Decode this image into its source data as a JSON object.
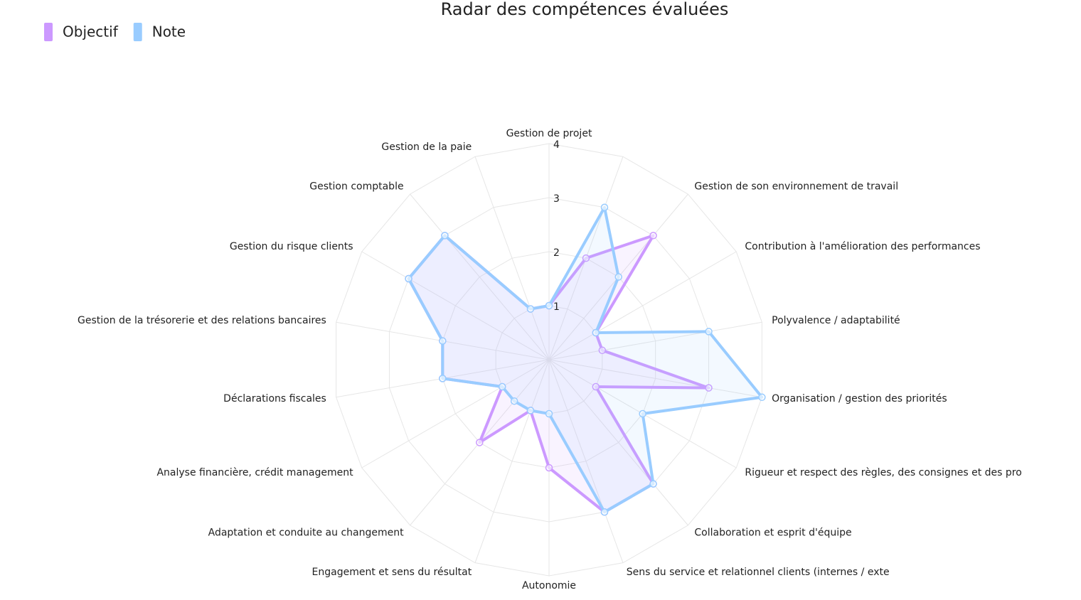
{
  "chart_data": {
    "type": "radar",
    "title": "Radar des compétences évaluées",
    "categories": [
      "Gestion de projet",
      null,
      "Gestion de son environnement de travail",
      "Contribution à l'amélioration des performances",
      "Polyvalence / adaptabilité",
      "Organisation / gestion des priorités",
      "Rigueur et respect des règles, des consignes et des pro",
      "Collaboration et esprit d'équipe",
      "Sens du service et relationnel clients (internes / exte",
      "Autonomie",
      "Engagement et sens du résultat",
      "Adaptation et conduite au changement",
      "Analyse financière, crédit management",
      "Déclarations fiscales",
      "Gestion de la trésorerie et des relations bancaires",
      "Gestion du risque clients",
      "Gestion comptable",
      "Gestion de la paie"
    ],
    "series": [
      {
        "name": "Objectif",
        "color": "#cc99ff",
        "values": [
          1,
          2,
          3,
          1,
          1,
          3,
          1,
          3,
          3,
          2,
          1,
          2,
          1,
          2,
          2,
          3,
          3,
          1
        ]
      },
      {
        "name": "Note",
        "color": "#99ccff",
        "values": [
          1,
          3,
          2,
          1,
          3,
          4,
          2,
          3,
          3,
          1,
          1,
          1,
          1,
          2,
          2,
          3,
          3,
          1
        ]
      }
    ],
    "rlim": [
      0,
      4
    ],
    "rticks": [
      1,
      2,
      3,
      4
    ],
    "legend": "top-left"
  }
}
